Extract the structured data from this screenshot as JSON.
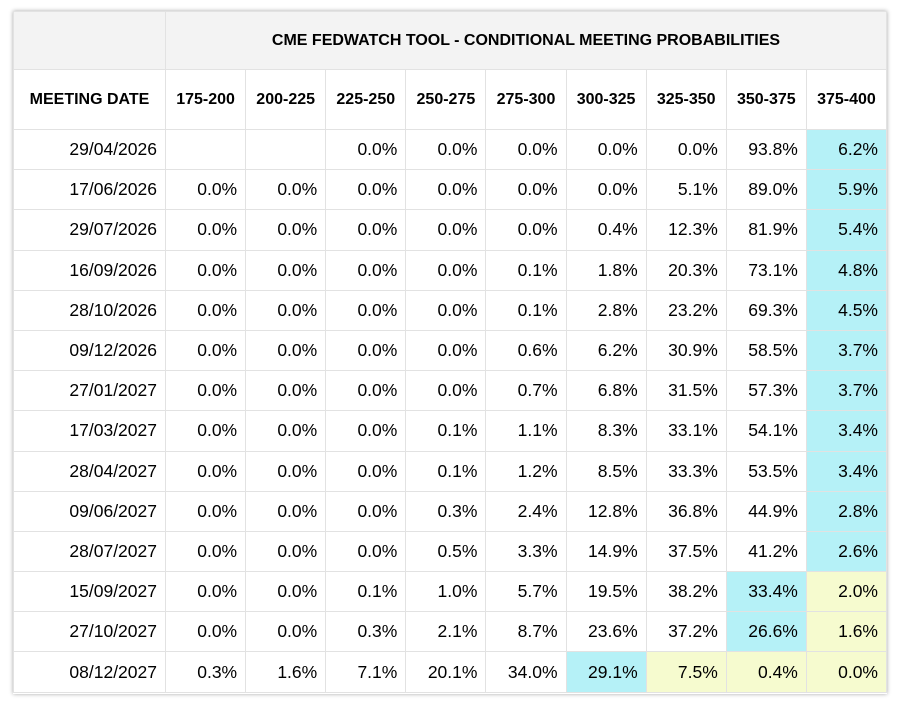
{
  "table": {
    "title": "CME FEDWATCH TOOL - CONDITIONAL MEETING PROBABILITIES",
    "columns": [
      "MEETING DATE",
      "175-200",
      "200-225",
      "225-250",
      "250-275",
      "275-300",
      "300-325",
      "325-350",
      "350-375",
      "375-400"
    ],
    "rows": [
      [
        "29/04/2026",
        null,
        null,
        "0.0%",
        "0.0%",
        "0.0%",
        "0.0%",
        "0.0%",
        "93.8%",
        "6.2%"
      ],
      [
        "17/06/2026",
        "0.0%",
        "0.0%",
        "0.0%",
        "0.0%",
        "0.0%",
        "0.0%",
        "5.1%",
        "89.0%",
        "5.9%"
      ],
      [
        "29/07/2026",
        "0.0%",
        "0.0%",
        "0.0%",
        "0.0%",
        "0.0%",
        "0.4%",
        "12.3%",
        "81.9%",
        "5.4%"
      ],
      [
        "16/09/2026",
        "0.0%",
        "0.0%",
        "0.0%",
        "0.0%",
        "0.1%",
        "1.8%",
        "20.3%",
        "73.1%",
        "4.8%"
      ],
      [
        "28/10/2026",
        "0.0%",
        "0.0%",
        "0.0%",
        "0.0%",
        "0.1%",
        "2.8%",
        "23.2%",
        "69.3%",
        "4.5%"
      ],
      [
        "09/12/2026",
        "0.0%",
        "0.0%",
        "0.0%",
        "0.0%",
        "0.6%",
        "6.2%",
        "30.9%",
        "58.5%",
        "3.7%"
      ],
      [
        "27/01/2027",
        "0.0%",
        "0.0%",
        "0.0%",
        "0.0%",
        "0.7%",
        "6.8%",
        "31.5%",
        "57.3%",
        "3.7%"
      ],
      [
        "17/03/2027",
        "0.0%",
        "0.0%",
        "0.0%",
        "0.1%",
        "1.1%",
        "8.3%",
        "33.1%",
        "54.1%",
        "3.4%"
      ],
      [
        "28/04/2027",
        "0.0%",
        "0.0%",
        "0.0%",
        "0.1%",
        "1.2%",
        "8.5%",
        "33.3%",
        "53.5%",
        "3.4%"
      ],
      [
        "09/06/2027",
        "0.0%",
        "0.0%",
        "0.0%",
        "0.3%",
        "2.4%",
        "12.8%",
        "36.8%",
        "44.9%",
        "2.8%"
      ],
      [
        "28/07/2027",
        "0.0%",
        "0.0%",
        "0.0%",
        "0.5%",
        "3.3%",
        "14.9%",
        "37.5%",
        "41.2%",
        "2.6%"
      ],
      [
        "15/09/2027",
        "0.0%",
        "0.0%",
        "0.1%",
        "1.0%",
        "5.7%",
        "19.5%",
        "38.2%",
        "33.4%",
        "2.0%"
      ],
      [
        "27/10/2027",
        "0.0%",
        "0.0%",
        "0.3%",
        "2.1%",
        "8.7%",
        "23.6%",
        "37.2%",
        "26.6%",
        "1.6%"
      ],
      [
        "08/12/2027",
        "0.3%",
        "1.6%",
        "7.1%",
        "20.1%",
        "34.0%",
        "29.1%",
        "7.5%",
        "0.4%",
        "0.0%"
      ]
    ],
    "shading": [
      {
        "row": 0,
        "col": 8,
        "color": "#b5f1f7"
      },
      {
        "row": 1,
        "col": 8,
        "color": "#b5f1f7"
      },
      {
        "row": 2,
        "col": 8,
        "color": "#b5f1f7"
      },
      {
        "row": 3,
        "col": 8,
        "color": "#b5f1f7"
      },
      {
        "row": 4,
        "col": 8,
        "color": "#b5f1f7"
      },
      {
        "row": 5,
        "col": 8,
        "color": "#b5f1f7"
      },
      {
        "row": 6,
        "col": 8,
        "color": "#b5f1f7"
      },
      {
        "row": 7,
        "col": 8,
        "color": "#b5f1f7"
      },
      {
        "row": 8,
        "col": 8,
        "color": "#b5f1f7"
      },
      {
        "row": 9,
        "col": 8,
        "color": "#b5f1f7"
      },
      {
        "row": 10,
        "col": 8,
        "color": "#b5f1f7"
      },
      {
        "row": 11,
        "col": 7,
        "color": "#b5f1f7"
      },
      {
        "row": 11,
        "col": 8,
        "color": "#f6fbcf"
      },
      {
        "row": 12,
        "col": 7,
        "color": "#b5f1f7"
      },
      {
        "row": 12,
        "col": 8,
        "color": "#f6fbcf"
      },
      {
        "row": 13,
        "col": 5,
        "color": "#b5f1f7"
      },
      {
        "row": 13,
        "col": 6,
        "color": "#f6fbcf"
      },
      {
        "row": 13,
        "col": 7,
        "color": "#f6fbcf"
      },
      {
        "row": 13,
        "col": 8,
        "color": "#f6fbcf"
      }
    ]
  }
}
